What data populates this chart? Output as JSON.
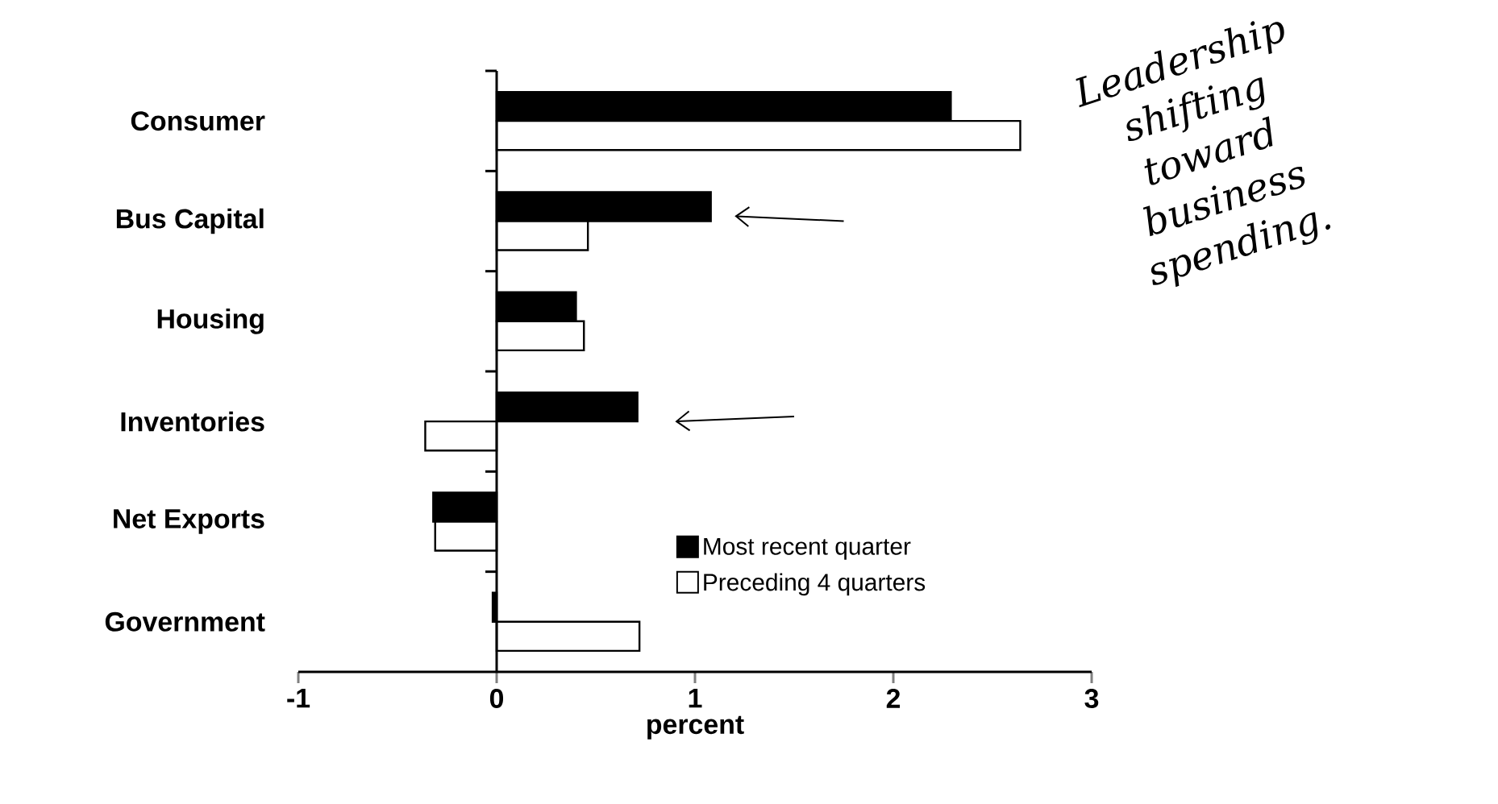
{
  "chart_data": {
    "type": "bar",
    "orientation": "horizontal",
    "xlabel": "percent",
    "categories": [
      "Consumer",
      "Bus Capital",
      "Housing",
      "Inventories",
      "Net Exports",
      "Government"
    ],
    "series": [
      {
        "name": "Most recent quarter",
        "color": "#000000",
        "values": [
          2.29,
          1.08,
          0.4,
          0.71,
          -0.32,
          -0.02
        ]
      },
      {
        "name": "Preceding 4 quarters",
        "color": "#ffffff",
        "values": [
          2.64,
          0.46,
          0.44,
          -0.36,
          -0.31,
          0.72
        ]
      }
    ],
    "xlim": [
      -1,
      3
    ],
    "xticks": [
      -1,
      0,
      1,
      2,
      3
    ],
    "legend": "right",
    "annotations": [
      "Leadership shifting toward business spending."
    ]
  }
}
